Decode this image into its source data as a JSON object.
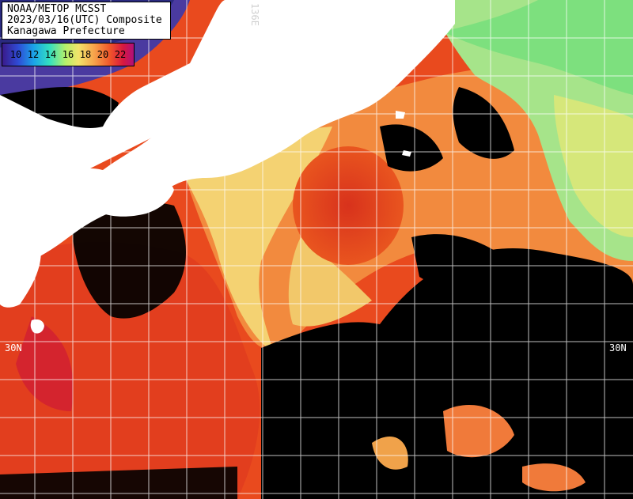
{
  "header": {
    "line1": "NOAA/METOP MCSST",
    "line2": "2023/03/16(UTC) Composite",
    "line3": "Kanagawa Prefecture"
  },
  "legend": {
    "ticks": [
      "10",
      "12",
      "14",
      "16",
      "18",
      "20",
      "22"
    ],
    "colors": [
      "#3a1a8a",
      "#2f4bd6",
      "#1ba4e8",
      "#34e0c0",
      "#b5f06b",
      "#f2e36a",
      "#f7a24a",
      "#f0552a",
      "#d81840",
      "#b0107a"
    ]
  },
  "grid_labels": {
    "lat_left": "30N",
    "lat_right": "30N",
    "lon_top": "136E"
  },
  "colors": {
    "land": "#ffffff",
    "cloud": "#000000",
    "grid": "#ffffff",
    "sst_warm": "#e8401c",
    "sst_mid": "#f59a45",
    "sst_cool": "#f3e070",
    "sst_cold": "#7ee88a"
  }
}
